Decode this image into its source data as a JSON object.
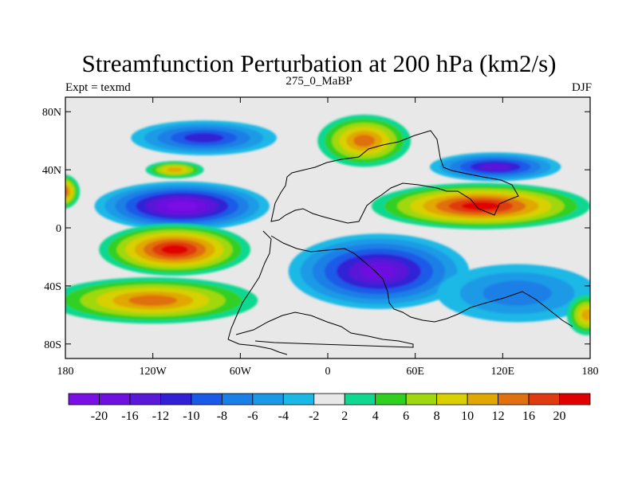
{
  "title": "Streamfunction Perturbation at 200 hPa (km2/s)",
  "subtitle_left": "Expt = texmd",
  "subtitle_center": "275_0_MaBP",
  "subtitle_right": "DJF",
  "map": {
    "lon_range": [
      -180,
      180
    ],
    "lat_range": [
      -90,
      90
    ],
    "lat_ticks": [
      {
        "value": 80,
        "label": "80N"
      },
      {
        "value": 40,
        "label": "40N"
      },
      {
        "value": 0,
        "label": "0"
      },
      {
        "value": -40,
        "label": "40S"
      },
      {
        "value": -80,
        "label": "80S"
      }
    ],
    "lon_ticks": [
      {
        "value": -180,
        "label": "180"
      },
      {
        "value": -120,
        "label": "120W"
      },
      {
        "value": -60,
        "label": "60W"
      },
      {
        "value": 0,
        "label": "0"
      },
      {
        "value": 60,
        "label": "60E"
      },
      {
        "value": 120,
        "label": "120E"
      },
      {
        "value": 180,
        "label": "180"
      }
    ],
    "background_color": "#e8e8e8"
  },
  "colorbar": {
    "colors": [
      "#7b10e6",
      "#6e10e0",
      "#5a18d8",
      "#3220d6",
      "#1a5ae8",
      "#1a7fe6",
      "#1a9ae6",
      "#1ab8e6",
      "#e8e8e8",
      "#10d890",
      "#30d020",
      "#a0d810",
      "#d8d000",
      "#e0a800",
      "#e07010",
      "#e03a10",
      "#e00000"
    ],
    "labels": [
      "-20",
      "-16",
      "-12",
      "-10",
      "-8",
      "-6",
      "-4",
      "-2",
      "2",
      "4",
      "6",
      "8",
      "10",
      "12",
      "16",
      "20"
    ]
  },
  "anomalies": [
    {
      "lon": -100,
      "lat": 15,
      "rx": 60,
      "ry": 17,
      "value": -22
    },
    {
      "lon": -85,
      "lat": 62,
      "rx": 50,
      "ry": 12,
      "value": -10
    },
    {
      "lon": -105,
      "lat": 40,
      "rx": 20,
      "ry": 6,
      "value": 10
    },
    {
      "lon": 25,
      "lat": 60,
      "rx": 32,
      "ry": 18,
      "value": 12
    },
    {
      "lon": 115,
      "lat": 42,
      "rx": 45,
      "ry": 10,
      "value": -14
    },
    {
      "lon": 105,
      "lat": 15,
      "rx": 75,
      "ry": 16,
      "value": 22
    },
    {
      "lon": -182,
      "lat": 25,
      "rx": 12,
      "ry": 12,
      "value": 16
    },
    {
      "lon": -105,
      "lat": -15,
      "rx": 52,
      "ry": 18,
      "value": 24
    },
    {
      "lon": -120,
      "lat": -50,
      "rx": 72,
      "ry": 16,
      "value": 15
    },
    {
      "lon": 35,
      "lat": -30,
      "rx": 62,
      "ry": 26,
      "value": -18
    },
    {
      "lon": 130,
      "lat": -45,
      "rx": 55,
      "ry": 20,
      "value": -6
    },
    {
      "lon": 178,
      "lat": -60,
      "rx": 14,
      "ry": 14,
      "value": 10
    }
  ]
}
